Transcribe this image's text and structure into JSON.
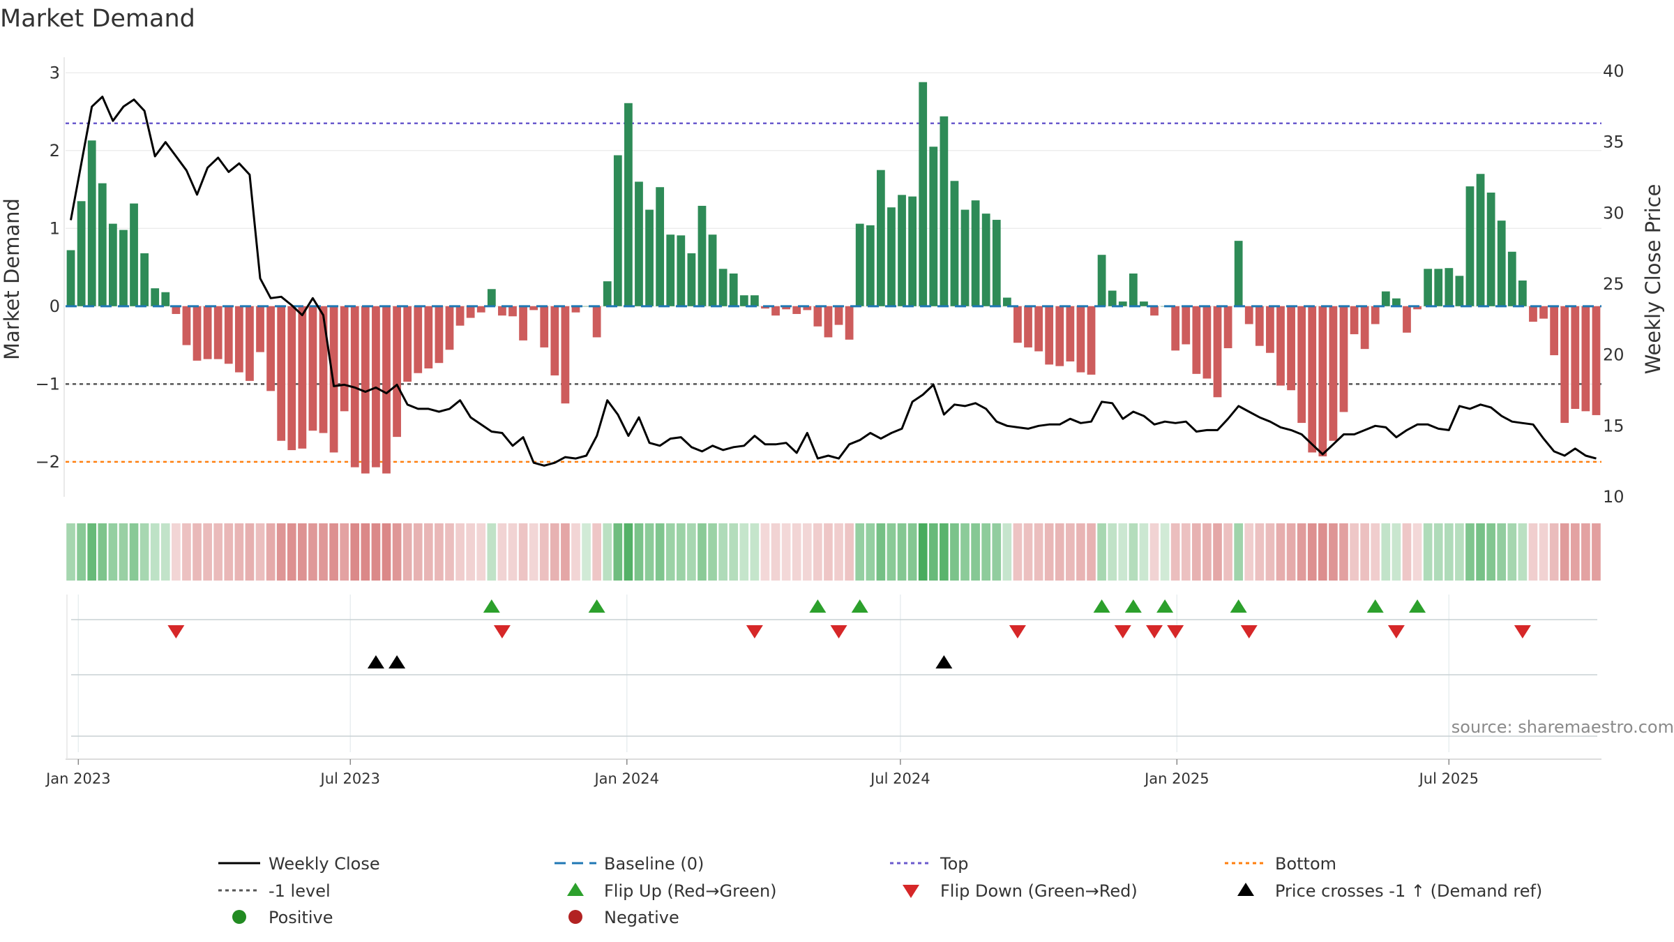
{
  "chart_data": {
    "type": "bar",
    "title": "Market Demand",
    "ylabel": "Market Demand",
    "y2label": "Weekly Close Price",
    "ylim": [
      -2.45,
      3.2
    ],
    "y2lim": [
      10,
      40
    ],
    "yticks": [
      3,
      2,
      1,
      0,
      -1,
      -2
    ],
    "ytick_labels": [
      "3",
      "2",
      "1",
      "0",
      "−1",
      "−2"
    ],
    "y2ticks": [
      40,
      35,
      30,
      25,
      20,
      15,
      10
    ],
    "y2tick_labels": [
      "40",
      "35",
      "30",
      "25",
      "20",
      "15",
      "10"
    ],
    "x_start": "2022-12-27",
    "x_step_days": 7,
    "xticks": [
      {
        "date": "2023-01-01",
        "label": "Jan 2023"
      },
      {
        "date": "2023-07-01",
        "label": "Jul 2023"
      },
      {
        "date": "2024-01-01",
        "label": "Jan 2024"
      },
      {
        "date": "2024-07-01",
        "label": "Jul 2024"
      },
      {
        "date": "2025-01-01",
        "label": "Jan 2025"
      },
      {
        "date": "2025-07-01",
        "label": "Jul 2025"
      }
    ],
    "reference_lines": {
      "top": 2.35,
      "minus_one": -1,
      "bottom": -2,
      "baseline": 0
    },
    "demand": [
      0.72,
      1.35,
      2.13,
      1.58,
      1.06,
      0.98,
      1.32,
      0.68,
      0.23,
      0.18,
      -0.1,
      -0.5,
      -0.7,
      -0.68,
      -0.68,
      -0.74,
      -0.85,
      -0.96,
      -0.59,
      -1.09,
      -1.73,
      -1.85,
      -1.83,
      -1.6,
      -1.63,
      -1.88,
      -1.35,
      -2.07,
      -2.15,
      -2.07,
      -2.15,
      -1.68,
      -0.97,
      -0.86,
      -0.8,
      -0.73,
      -0.56,
      -0.25,
      -0.15,
      -0.08,
      0.22,
      -0.12,
      -0.13,
      -0.44,
      -0.05,
      -0.53,
      -0.89,
      -1.25,
      -0.08,
      0.0,
      -0.4,
      0.32,
      1.94,
      2.61,
      1.6,
      1.24,
      1.53,
      0.92,
      0.91,
      0.68,
      1.29,
      0.92,
      0.48,
      0.42,
      0.14,
      0.14,
      -0.03,
      -0.12,
      -0.04,
      -0.1,
      -0.05,
      -0.26,
      -0.4,
      -0.24,
      -0.43,
      1.06,
      1.04,
      1.75,
      1.27,
      1.43,
      1.41,
      2.88,
      2.05,
      2.44,
      1.61,
      1.24,
      1.36,
      1.19,
      1.11,
      0.11,
      -0.47,
      -0.53,
      -0.58,
      -0.75,
      -0.77,
      -0.71,
      -0.85,
      -0.88,
      0.66,
      0.2,
      0.06,
      0.42,
      0.06,
      -0.12,
      0.0,
      -0.57,
      -0.49,
      -0.87,
      -0.93,
      -1.17,
      -0.54,
      0.84,
      -0.23,
      -0.51,
      -0.6,
      -1.02,
      -1.08,
      -1.5,
      -1.88,
      -1.93,
      -1.73,
      -1.36,
      -0.36,
      -0.55,
      -0.23,
      0.19,
      0.1,
      -0.34,
      -0.04,
      0.48,
      0.48,
      0.49,
      0.39,
      1.54,
      1.7,
      1.46,
      1.1,
      0.7,
      0.33,
      -0.2,
      -0.16,
      -0.63,
      -1.5,
      -1.32,
      -1.35,
      -1.4
    ],
    "close": [
      29.5,
      33.5,
      37.5,
      38.2,
      36.5,
      37.5,
      38.0,
      37.2,
      34.0,
      35.0,
      34.0,
      33.0,
      31.3,
      33.2,
      33.9,
      32.9,
      33.5,
      32.7,
      25.4,
      24.0,
      24.1,
      23.5,
      22.8,
      24.0,
      22.8,
      17.8,
      17.9,
      17.7,
      17.4,
      17.7,
      17.3,
      17.9,
      16.5,
      16.2,
      16.2,
      16.0,
      16.2,
      16.8,
      15.6,
      15.1,
      14.6,
      14.5,
      13.6,
      14.2,
      12.4,
      12.2,
      12.4,
      12.8,
      12.7,
      12.9,
      14.3,
      16.8,
      15.8,
      14.3,
      15.6,
      13.8,
      13.6,
      14.1,
      14.2,
      13.5,
      13.2,
      13.6,
      13.3,
      13.5,
      13.6,
      14.3,
      13.7,
      13.7,
      13.8,
      13.1,
      14.5,
      12.7,
      12.9,
      12.7,
      13.7,
      14.0,
      14.5,
      14.1,
      14.5,
      14.8,
      16.7,
      17.2,
      17.9,
      15.8,
      16.5,
      16.4,
      16.6,
      16.2,
      15.3,
      15.0,
      14.9,
      14.8,
      15.0,
      15.1,
      15.1,
      15.5,
      15.2,
      15.3,
      16.7,
      16.6,
      15.5,
      16.0,
      15.7,
      15.1,
      15.3,
      15.2,
      15.3,
      14.6,
      14.7,
      14.7,
      15.5,
      16.4,
      16.0,
      15.6,
      15.3,
      14.9,
      14.7,
      14.4,
      13.7,
      13.0,
      13.7,
      14.4,
      14.4,
      14.7,
      15.0,
      14.9,
      14.2,
      14.7,
      15.1,
      15.1,
      14.8,
      14.7,
      16.4,
      16.2,
      16.5,
      16.3,
      15.7,
      15.3,
      15.2,
      15.1,
      14.1,
      13.2,
      12.9,
      13.4,
      12.9,
      12.7
    ],
    "flip_up_weeks": [
      40,
      50,
      71,
      75,
      98,
      101,
      104,
      111,
      124,
      128
    ],
    "flip_down_weeks": [
      10,
      41,
      65,
      73,
      90,
      100,
      103,
      105,
      112,
      126,
      138
    ],
    "price_cross_weeks": [
      29,
      31,
      83
    ],
    "series": [
      {
        "name": "Weekly Close"
      },
      {
        "name": "Baseline (0)"
      },
      {
        "name": "Top"
      },
      {
        "name": "Bottom"
      },
      {
        "name": "-1 level"
      },
      {
        "name": "Flip Up (Red→Green)"
      },
      {
        "name": "Flip Down (Green→Red)"
      },
      {
        "name": "Price crosses -1 ↑ (Demand ref)"
      },
      {
        "name": "Positive"
      },
      {
        "name": "Negative"
      }
    ],
    "source": "source: sharemaestro.com"
  },
  "colors": {
    "positive_bar": "#2e8b57",
    "negative_bar": "#cd5c5c",
    "close_line": "#000000",
    "baseline": "#1f77b4",
    "top": "#6a5acd",
    "minus_one": "#555555",
    "bottom": "#ff7f0e",
    "flip_up": "#2ca02c",
    "flip_down": "#d62728",
    "cross": "#000000",
    "positive_dot": "#228b22",
    "negative_dot": "#b22222",
    "grid": "#e6e6e6",
    "panel_axis": "#c8d0d4"
  }
}
